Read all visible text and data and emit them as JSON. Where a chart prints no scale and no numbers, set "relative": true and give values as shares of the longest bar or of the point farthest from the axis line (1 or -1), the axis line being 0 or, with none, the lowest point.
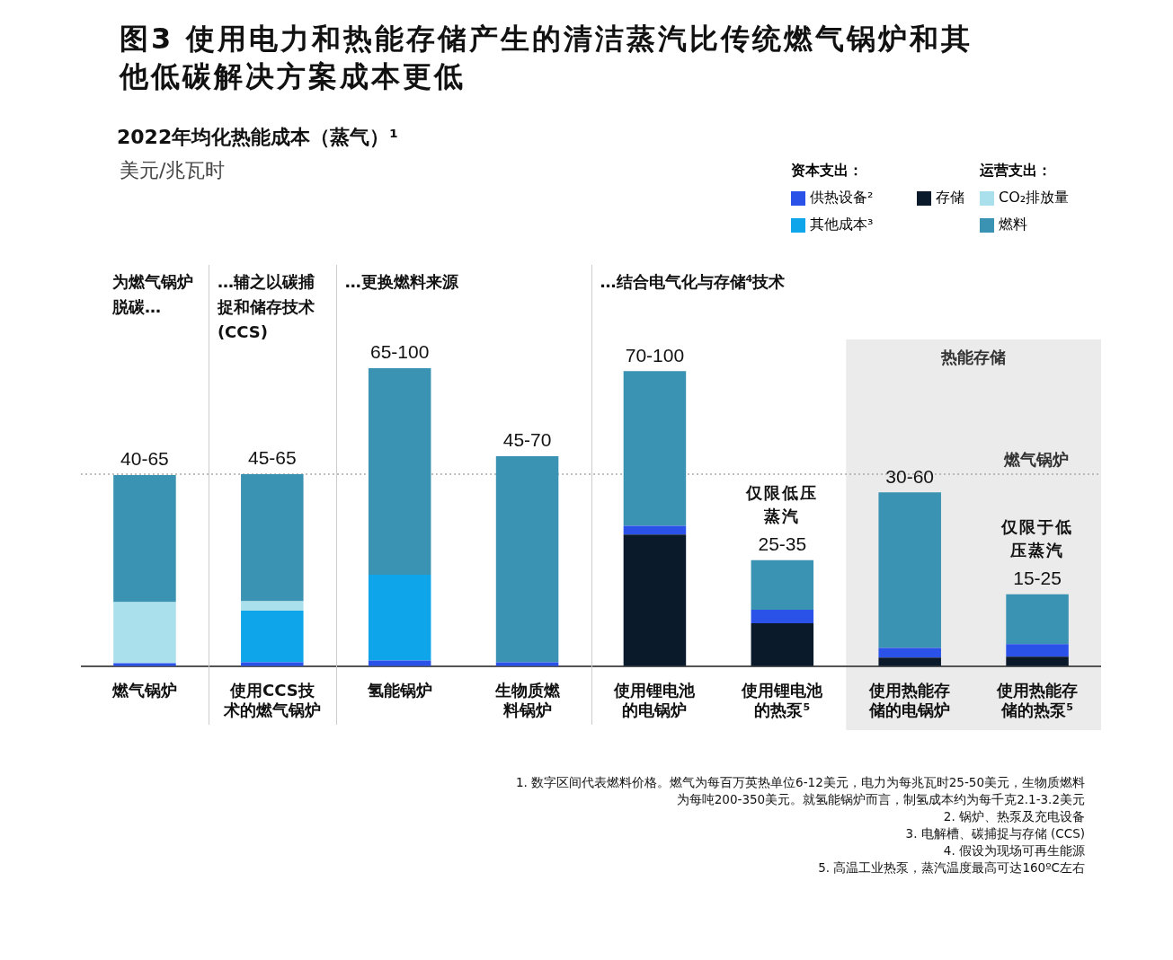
{
  "chart_data": {
    "type": "bar",
    "stacked": true,
    "relative": true,
    "title": "图3 使用电力和热能存储产生的清洁蒸汽比传统燃气锅炉和其他低碳解决方案成本更低",
    "subtitle": "2022年均化热能成本（蒸气）¹",
    "categories": [
      "燃气锅炉",
      "使用CCS技术的燃气锅炉",
      "氢能锅炉",
      "生物质燃料锅炉",
      "使用锂电池的电锅炉",
      "使用锂电池的热泵⁵",
      "使用热能存储的电锅炉",
      "使用热能存储的热泵⁵"
    ],
    "series": [
      {
        "name": "存储",
        "color": "#0b1a2b",
        "values": [
          null,
          null,
          null,
          null,
          0.442,
          0.144,
          0.029,
          0.032
        ]
      },
      {
        "name": "供热设备²",
        "color": "#2a52e8",
        "values": [
          0.01,
          0.013,
          0.019,
          0.013,
          0.029,
          0.045,
          0.032,
          0.042
        ]
      },
      {
        "name": "其他成本³",
        "color": "#0ea5ea",
        "values": [
          null,
          0.173,
          0.288,
          null,
          null,
          null,
          null,
          null
        ]
      },
      {
        "name": "CO₂排放量",
        "color": "#a9e0ec",
        "values": [
          0.205,
          0.032,
          null,
          null,
          null,
          null,
          null,
          null
        ]
      },
      {
        "name": "燃料",
        "color": "#3a93b2",
        "values": [
          0.426,
          0.426,
          0.693,
          0.692,
          0.519,
          0.167,
          0.522,
          0.167
        ]
      }
    ],
    "totals": [
      "40-65",
      "45-65",
      "65-100",
      "45-70",
      "70-100",
      "25-35",
      "30-60",
      "15-25"
    ],
    "ref_lines": [
      {
        "axis": "y",
        "value": 0.644,
        "label": "燃气锅炉",
        "color": "#aaaaaa",
        "line_style": "dotted"
      }
    ],
    "bands": [
      {
        "axis": "x",
        "from": "使用热能存储的电锅炉",
        "to": "使用热能存储的热泵⁵",
        "label": "热能存储",
        "color": "#ebebeb"
      }
    ],
    "legend": "top right",
    "grid": false,
    "annotations": [
      "美元/兆瓦时",
      "为燃气锅炉脱碳…",
      "…辅之以碳捕捉和储存技术(CCS)",
      "…更换燃料来源",
      "…结合电气化与存储⁴技术",
      "资本支出：",
      "运营支出：",
      "1. 数字区间代表燃料价格。燃气为每百万英热单位6-12美元，电力为每兆瓦时25-50美元，生物质燃料为每吨200-350美元。就氢能锅炉而言，制氢成本约为每千克2.1-3.2美元",
      "2. 锅炉、热泵及充电设备",
      "3. 电解槽、碳捕捉与存储 (CCS)",
      "4. 假设为现场可再生能源",
      "5. 高温工业热泵，蒸汽温度最高可达160ºC左右",
      "仅限低压蒸汽",
      "仅限于低压蒸汽"
    ]
  }
}
